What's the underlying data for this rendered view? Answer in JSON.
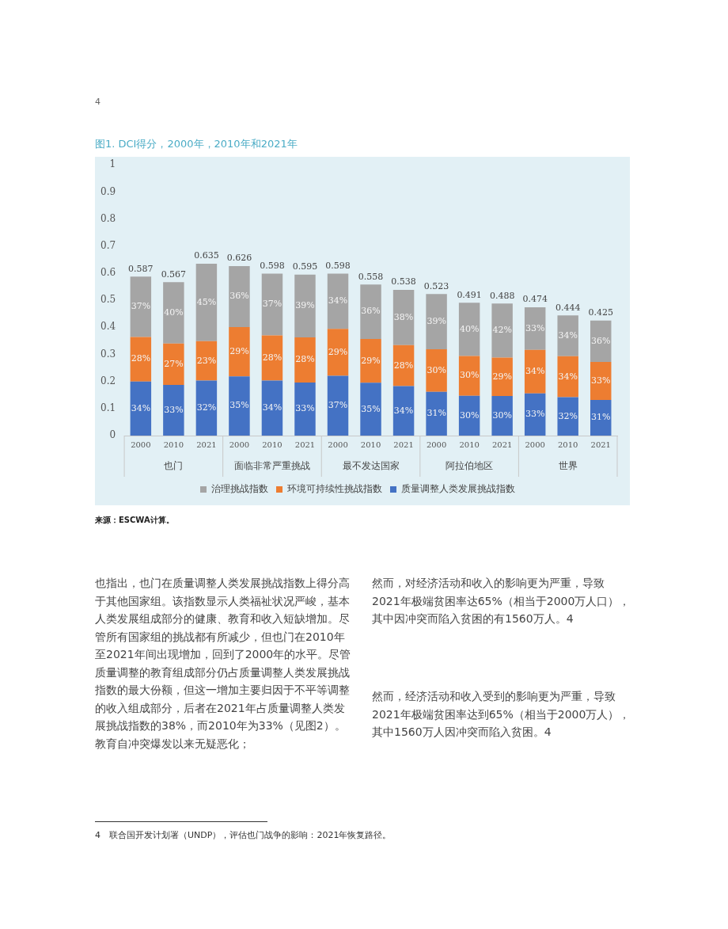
{
  "chart_data": {
    "type": "bar",
    "stacked": true,
    "title": "图1. DCI得分，2000年，2010年和2021年",
    "categories": [
      "2000",
      "2010",
      "2021",
      "2000",
      "2010",
      "2021",
      "2000",
      "2010",
      "2021",
      "2000",
      "2010",
      "2021",
      "2000",
      "2010",
      "2021"
    ],
    "series": [
      {
        "name": "质量调整人类发展挑战指数",
        "color": "#4472c4",
        "values": [
          0.2,
          0.187,
          0.203,
          0.219,
          0.203,
          0.196,
          0.221,
          0.195,
          0.183,
          0.162,
          0.147,
          0.146,
          0.156,
          0.142,
          0.132
        ]
      },
      {
        "name": "环境可持续性挑战指数",
        "color": "#ed7d31",
        "values": [
          0.164,
          0.153,
          0.146,
          0.182,
          0.167,
          0.167,
          0.173,
          0.162,
          0.151,
          0.157,
          0.147,
          0.142,
          0.161,
          0.151,
          0.14
        ]
      },
      {
        "name": "治理挑战指数",
        "color": "#a5a5a5",
        "values": [
          0.223,
          0.227,
          0.286,
          0.225,
          0.228,
          0.232,
          0.204,
          0.201,
          0.204,
          0.204,
          0.197,
          0.2,
          0.157,
          0.151,
          0.153
        ]
      }
    ],
    "totals": [
      "0.587",
      "0.567",
      "0.635",
      "0.626",
      "0.598",
      "0.595",
      "0.598",
      "0.558",
      "0.538",
      "0.523",
      "0.491",
      "0.488",
      "0.474",
      "0.444",
      "0.425"
    ],
    "ylim": [
      0,
      1
    ],
    "yticks": [
      0,
      0.1,
      0.2,
      0.3,
      0.4,
      0.5,
      0.6,
      0.7,
      0.8,
      0.9,
      1
    ],
    "grid": false,
    "legend": "bottom",
    "annotations": [
      "也门",
      "面临非常严重挑战",
      "最不发达国家",
      "阿拉伯地区",
      "世界",
      "来源：ESCWA计算。",
      "也指出，也门在质量调整人类发展挑战指数上得分高于其他国家组。该指数显示人类福祉状况严峻，基本人类发展组成部分的健康、教育和收入短缺增加。尽管所有国家组的挑战都有所减少，但也门在2010年至2021年间出现增加，回到了2000年的水平。尽管质量调整的教育组成部分仍占质量调整人类发展挑战指数的最大份额，但这一增加主要归因于不平等调整的收入组成部分，后者在2021年占质量调整人类发展挑战指数的38%，而2010年为33%（见图2）。教育自冲突爆发以来无疑恶化；",
      "然而，对经济活动和收入的影响更为严重，导致2021年极端贫困率达65%（相当于2000万人口），其中因冲突而陷入贫困的有1560万人。4",
      "然而，经济活动和收入受到的影响更为严重，导致2021年极端贫困率达到65%（相当于2000万人），其中1560万人因冲突而陷入贫困。4",
      "4　联合国开发计划署（UNDP），评估也门战争的影响：2021年恢复路径。",
      "4",
      "34%",
      "33%",
      "32%",
      "35%",
      "34%",
      "33%",
      "37%",
      "35%",
      "34%",
      "31%",
      "30%",
      "30%",
      "33%",
      "32%",
      "31%",
      "28%",
      "27%",
      "23%",
      "29%",
      "28%",
      "28%",
      "29%",
      "29%",
      "28%",
      "30%",
      "30%",
      "29%",
      "34%",
      "34%",
      "33%",
      "37%",
      "40%",
      "45%",
      "36%",
      "37%",
      "39%",
      "34%",
      "36%",
      "38%",
      "39%",
      "40%",
      "42%",
      "33%",
      "34%",
      "36%"
    ]
  }
}
